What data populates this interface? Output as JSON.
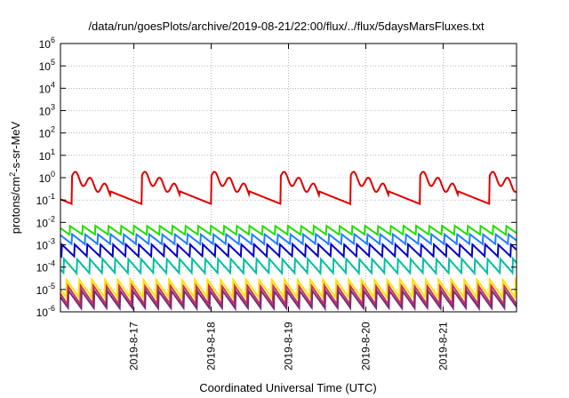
{
  "chart_data": {
    "type": "line",
    "title": "/data/run/goesPlots/archive/2019-08-21/22:00/flux/../flux/5daysMarsFluxes.txt",
    "xlabel": "Coordinated Universal Time (UTC)",
    "ylabel_main": "protons/cm",
    "ylabel_sup": "2",
    "ylabel_rest": "-s-sr-MeV",
    "y_scale": "log",
    "ylim_exp": [
      -6,
      6
    ],
    "y_ticks": [
      {
        "exp": -6,
        "base": "10",
        "sup": "-6"
      },
      {
        "exp": -5,
        "base": "10",
        "sup": "-5"
      },
      {
        "exp": -4,
        "base": "10",
        "sup": "-4"
      },
      {
        "exp": -3,
        "base": "10",
        "sup": "-3"
      },
      {
        "exp": -2,
        "base": "10",
        "sup": "-2"
      },
      {
        "exp": -1,
        "base": "10",
        "sup": "-1"
      },
      {
        "exp": 0,
        "base": "10",
        "sup": "0"
      },
      {
        "exp": 1,
        "base": "10",
        "sup": "1"
      },
      {
        "exp": 2,
        "base": "10",
        "sup": "2"
      },
      {
        "exp": 3,
        "base": "10",
        "sup": "3"
      },
      {
        "exp": 4,
        "base": "10",
        "sup": "4"
      },
      {
        "exp": 5,
        "base": "10",
        "sup": "5"
      },
      {
        "exp": 6,
        "base": "10",
        "sup": "6"
      }
    ],
    "x_range_days": [
      -0.95,
      4.95
    ],
    "x_ticks": [
      {
        "day": 0,
        "label": "2019-8-17"
      },
      {
        "day": 1,
        "label": "2019-8-18"
      },
      {
        "day": 2,
        "label": "2019-8-19"
      },
      {
        "day": 3,
        "label": "2019-8-20"
      },
      {
        "day": 4,
        "label": "2019-8-21"
      }
    ],
    "grid": true,
    "series": [
      {
        "color": "#e00000",
        "level_exp": -0.55,
        "amp": 1.25,
        "period": 0.9,
        "phase": 0.1,
        "big": true
      },
      {
        "color": "#22dd00",
        "level_exp": -2.35,
        "amp": 0.4,
        "period": 0.166,
        "phase": 0.0,
        "big": false
      },
      {
        "color": "#1e7fff",
        "level_exp": -2.75,
        "amp": 0.45,
        "period": 0.166,
        "phase": 0.03,
        "big": false
      },
      {
        "color": "#0000cc",
        "level_exp": -3.25,
        "amp": 0.55,
        "period": 0.166,
        "phase": 0.06,
        "big": false
      },
      {
        "color": "#00bfa0",
        "level_exp": -3.95,
        "amp": 0.65,
        "period": 0.166,
        "phase": 0.09,
        "big": false
      },
      {
        "color": "#ffe000",
        "level_exp": -4.95,
        "amp": 0.8,
        "period": 0.166,
        "phase": 0.12,
        "big": false
      },
      {
        "color": "#cc3355",
        "level_exp": -5.25,
        "amp": 0.85,
        "period": 0.166,
        "phase": 0.14,
        "big": false
      },
      {
        "color": "#7a2a7a",
        "level_exp": -5.45,
        "amp": 0.8,
        "period": 0.166,
        "phase": 0.15,
        "big": false
      }
    ]
  }
}
